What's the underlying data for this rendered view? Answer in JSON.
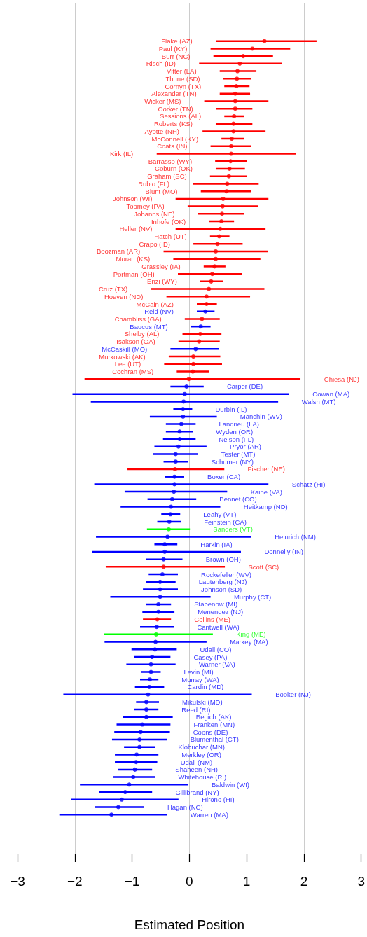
{
  "chart_data": {
    "type": "scatter",
    "orientation": "horizontal",
    "xlabel": "Estimated Position",
    "xlim": [
      -3,
      3
    ],
    "xticks": [
      -3,
      -2,
      -1,
      0,
      1,
      2,
      3
    ],
    "grid": "x",
    "tick_labels": "x",
    "marker": "circle",
    "categories": [
      "Flake (AZ)",
      "Paul (KY)",
      "Burr (NC)",
      "Risch (ID)",
      "Vitter (LA)",
      "Thune (SD)",
      "Cornyn (TX)",
      "Alexander (TN)",
      "Wicker (MS)",
      "Corker (TN)",
      "Sessions (AL)",
      "Roberts (KS)",
      "Ayotte (NH)",
      "McConnell (KY)",
      "Coats (IN)",
      "Kirk (IL)",
      "Barrasso (WY)",
      "Coburn (OK)",
      "Graham (SC)",
      "Rubio (FL)",
      "Blunt (MO)",
      "Johnson (WI)",
      "Toomey (PA)",
      "Johanns (NE)",
      "Inhofe (OK)",
      "Heller (NV)",
      "Hatch (UT)",
      "Crapo (ID)",
      "Boozman (AR)",
      "Moran (KS)",
      "Grassley (IA)",
      "Portman (OH)",
      "Enzi (WY)",
      "Cruz (TX)",
      "Hoeven (ND)",
      "McCain (AZ)",
      "Reid (NV)",
      "Chambliss (GA)",
      "Baucus (MT)",
      "Shelby (AL)",
      "Isakson (GA)",
      "McCaskill (MO)",
      "Murkowski (AK)",
      "Lee (UT)",
      "Cochran (MS)",
      "Chiesa (NJ)",
      "Carper (DE)",
      "Cowan (MA)",
      "Walsh (MT)",
      "Durbin (IL)",
      "Manchin (WV)",
      "Landrieu (LA)",
      "Wyden (OR)",
      "Nelson (FL)",
      "Pryor (AR)",
      "Tester (MT)",
      "Schumer (NY)",
      "Fischer (NE)",
      "Boxer (CA)",
      "Schatz (HI)",
      "Kaine (VA)",
      "Bennet (CO)",
      "Heitkamp (ND)",
      "Leahy (VT)",
      "Feinstein (CA)",
      "Sanders (VT)",
      "Heinrich (NM)",
      "Harkin (IA)",
      "Donnelly (IN)",
      "Brown (OH)",
      "Scott (SC)",
      "Rockefeller (WV)",
      "Lautenberg (NJ)",
      "Johnson (SD)",
      "Murphy (CT)",
      "Stabenow (MI)",
      "Menendez (NJ)",
      "Collins (ME)",
      "Cantwell (WA)",
      "King (ME)",
      "Markey (MA)",
      "Udall (CO)",
      "Casey (PA)",
      "Warner (VA)",
      "Levin (MI)",
      "Murray (WA)",
      "Cardin (MD)",
      "Booker (NJ)",
      "Mikulski (MD)",
      "Reed (RI)",
      "Begich (AK)",
      "Franken (MN)",
      "Coons (DE)",
      "Blumenthal (CT)",
      "Klobuchar (MN)",
      "Merkley (OR)",
      "Udall (NM)",
      "Shaheen (NH)",
      "Whitehouse (RI)",
      "Baldwin (WI)",
      "Gillibrand (NY)",
      "Hirono (HI)",
      "Hagan (NC)",
      "Warren (MA)"
    ],
    "values": [
      1.31,
      1.1,
      0.94,
      0.88,
      0.84,
      0.83,
      0.82,
      0.8,
      0.8,
      0.8,
      0.78,
      0.77,
      0.77,
      0.74,
      0.73,
      0.73,
      0.72,
      0.7,
      0.69,
      0.66,
      0.65,
      0.59,
      0.58,
      0.57,
      0.56,
      0.54,
      0.52,
      0.49,
      0.46,
      0.46,
      0.44,
      0.4,
      0.38,
      0.34,
      0.3,
      0.3,
      0.28,
      0.22,
      0.2,
      0.19,
      0.17,
      0.11,
      0.07,
      0.07,
      0.06,
      -0.01,
      -0.05,
      -0.08,
      -0.1,
      -0.11,
      -0.11,
      -0.14,
      -0.17,
      -0.17,
      -0.19,
      -0.24,
      -0.24,
      -0.25,
      -0.26,
      -0.26,
      -0.27,
      -0.3,
      -0.32,
      -0.33,
      -0.35,
      -0.36,
      -0.38,
      -0.43,
      -0.43,
      -0.45,
      -0.45,
      -0.47,
      -0.51,
      -0.51,
      -0.51,
      -0.54,
      -0.54,
      -0.56,
      -0.57,
      -0.58,
      -0.59,
      -0.6,
      -0.65,
      -0.67,
      -0.67,
      -0.69,
      -0.7,
      -0.72,
      -0.75,
      -0.75,
      -0.75,
      -0.82,
      -0.85,
      -0.87,
      -0.87,
      -0.92,
      -0.93,
      -0.95,
      -0.98,
      -1.05,
      -1.12,
      -1.18,
      -1.24,
      -1.36
    ],
    "errors": [
      [
        0.46,
        2.22
      ],
      [
        0.37,
        1.76
      ],
      [
        0.42,
        1.46
      ],
      [
        0.17,
        1.61
      ],
      [
        0.53,
        1.17
      ],
      [
        0.59,
        1.08
      ],
      [
        0.61,
        1.05
      ],
      [
        0.53,
        1.06
      ],
      [
        0.26,
        1.38
      ],
      [
        0.47,
        1.1
      ],
      [
        0.61,
        0.96
      ],
      [
        0.46,
        1.1
      ],
      [
        0.23,
        1.33
      ],
      [
        0.56,
        0.95
      ],
      [
        0.37,
        1.08
      ],
      [
        -0.57,
        1.86
      ],
      [
        0.45,
        1.0
      ],
      [
        0.46,
        0.97
      ],
      [
        0.36,
        1.01
      ],
      [
        0.06,
        1.21
      ],
      [
        0.2,
        1.08
      ],
      [
        -0.24,
        1.38
      ],
      [
        -0.03,
        1.2
      ],
      [
        0.15,
        0.96
      ],
      [
        0.34,
        0.78
      ],
      [
        -0.24,
        1.33
      ],
      [
        0.36,
        0.7
      ],
      [
        0.07,
        0.93
      ],
      [
        -0.45,
        1.37
      ],
      [
        -0.28,
        1.24
      ],
      [
        0.25,
        0.63
      ],
      [
        -0.2,
        0.92
      ],
      [
        0.19,
        0.59
      ],
      [
        -0.67,
        1.31
      ],
      [
        -0.4,
        1.06
      ],
      [
        0.13,
        0.48
      ],
      [
        0.13,
        0.44
      ],
      [
        -0.08,
        0.53
      ],
      [
        0.03,
        0.37
      ],
      [
        -0.12,
        0.56
      ],
      [
        -0.19,
        0.53
      ],
      [
        -0.33,
        0.52
      ],
      [
        -0.36,
        0.54
      ],
      [
        -0.44,
        0.57
      ],
      [
        -0.22,
        0.34
      ],
      [
        -1.83,
        1.94
      ],
      [
        -0.33,
        0.25
      ],
      [
        -2.04,
        1.74
      ],
      [
        -1.72,
        1.55
      ],
      [
        -0.28,
        0.05
      ],
      [
        -0.69,
        0.48
      ],
      [
        -0.41,
        0.11
      ],
      [
        -0.41,
        0.06
      ],
      [
        -0.46,
        0.11
      ],
      [
        -0.61,
        0.3
      ],
      [
        -0.63,
        0.15
      ],
      [
        -0.45,
        -0.02
      ],
      [
        -1.08,
        0.61
      ],
      [
        -0.42,
        -0.09
      ],
      [
        -1.66,
        1.38
      ],
      [
        -1.13,
        0.66
      ],
      [
        -0.73,
        0.12
      ],
      [
        -1.2,
        0.54
      ],
      [
        -0.49,
        -0.16
      ],
      [
        -0.56,
        -0.15
      ],
      [
        -0.74,
        0.01
      ],
      [
        -1.63,
        1.08
      ],
      [
        -0.61,
        -0.21
      ],
      [
        -1.7,
        0.9
      ],
      [
        -0.76,
        -0.12
      ],
      [
        -1.46,
        0.62
      ],
      [
        -0.71,
        -0.2
      ],
      [
        -0.75,
        -0.24
      ],
      [
        -0.81,
        -0.2
      ],
      [
        -1.38,
        0.37
      ],
      [
        -0.76,
        -0.32
      ],
      [
        -0.82,
        -0.26
      ],
      [
        -0.81,
        -0.32
      ],
      [
        -0.86,
        -0.27
      ],
      [
        -1.49,
        0.41
      ],
      [
        -1.48,
        0.3
      ],
      [
        -1.01,
        -0.22
      ],
      [
        -0.96,
        -0.33
      ],
      [
        -1.1,
        -0.24
      ],
      [
        -0.84,
        -0.5
      ],
      [
        -0.86,
        -0.54
      ],
      [
        -0.95,
        -0.44
      ],
      [
        -2.2,
        1.09
      ],
      [
        -0.93,
        -0.53
      ],
      [
        -0.96,
        -0.54
      ],
      [
        -1.16,
        -0.29
      ],
      [
        -1.27,
        -0.33
      ],
      [
        -1.31,
        -0.34
      ],
      [
        -1.35,
        -0.39
      ],
      [
        -1.14,
        -0.6
      ],
      [
        -1.3,
        -0.54
      ],
      [
        -1.3,
        -0.56
      ],
      [
        -1.24,
        -0.65
      ],
      [
        -1.33,
        -0.6
      ],
      [
        -1.91,
        -0.02
      ],
      [
        -1.58,
        -0.65
      ],
      [
        -2.06,
        -0.19
      ],
      [
        -1.65,
        -0.79
      ],
      [
        -2.27,
        -0.39
      ]
    ],
    "colors": [
      "#ff0000",
      "#ff0000",
      "#ff0000",
      "#ff0000",
      "#ff0000",
      "#ff0000",
      "#ff0000",
      "#ff0000",
      "#ff0000",
      "#ff0000",
      "#ff0000",
      "#ff0000",
      "#ff0000",
      "#ff0000",
      "#ff0000",
      "#ff0000",
      "#ff0000",
      "#ff0000",
      "#ff0000",
      "#ff0000",
      "#ff0000",
      "#ff0000",
      "#ff0000",
      "#ff0000",
      "#ff0000",
      "#ff0000",
      "#ff0000",
      "#ff0000",
      "#ff0000",
      "#ff0000",
      "#ff0000",
      "#ff0000",
      "#ff0000",
      "#ff0000",
      "#ff0000",
      "#ff0000",
      "#0000ff",
      "#ff0000",
      "#0000ff",
      "#ff0000",
      "#ff0000",
      "#0000ff",
      "#ff0000",
      "#ff0000",
      "#ff0000",
      "#ff0000",
      "#0000ff",
      "#0000ff",
      "#0000ff",
      "#0000ff",
      "#0000ff",
      "#0000ff",
      "#0000ff",
      "#0000ff",
      "#0000ff",
      "#0000ff",
      "#0000ff",
      "#ff0000",
      "#0000ff",
      "#0000ff",
      "#0000ff",
      "#0000ff",
      "#0000ff",
      "#0000ff",
      "#0000ff",
      "#00ff00",
      "#0000ff",
      "#0000ff",
      "#0000ff",
      "#0000ff",
      "#ff0000",
      "#0000ff",
      "#0000ff",
      "#0000ff",
      "#0000ff",
      "#0000ff",
      "#0000ff",
      "#ff0000",
      "#0000ff",
      "#00ff00",
      "#0000ff",
      "#0000ff",
      "#0000ff",
      "#0000ff",
      "#0000ff",
      "#0000ff",
      "#0000ff",
      "#0000ff",
      "#0000ff",
      "#0000ff",
      "#0000ff",
      "#0000ff",
      "#0000ff",
      "#0000ff",
      "#0000ff",
      "#0000ff",
      "#0000ff",
      "#0000ff",
      "#0000ff",
      "#0000ff",
      "#0000ff",
      "#0000ff",
      "#0000ff",
      "#0000ff"
    ]
  }
}
